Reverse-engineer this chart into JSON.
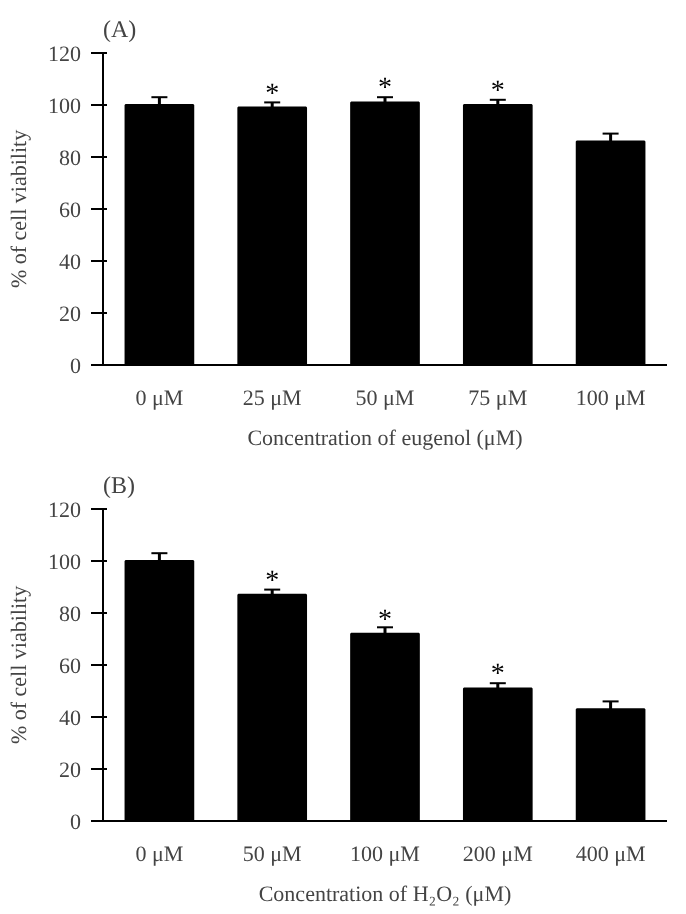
{
  "chart_data": [
    {
      "type": "bar",
      "title": "(A)",
      "xlabel": "Concentration of eugenol (μM)",
      "ylabel": "% of cell viability",
      "categories": [
        "0 μM",
        "25 μM",
        "50 μM",
        "75 μM",
        "100 μM"
      ],
      "values": [
        100,
        99,
        101,
        100,
        86
      ],
      "errors": [
        3,
        2,
        2,
        2,
        3
      ],
      "color": "#000000",
      "ylim": [
        0,
        120
      ],
      "yticks": [
        0,
        20,
        40,
        60,
        80,
        100,
        120
      ],
      "grid": false,
      "annotations": [
        {
          "text": "*",
          "x": "25 μM",
          "y": 104
        },
        {
          "text": "*",
          "x": "50 μM",
          "y": 106
        },
        {
          "text": "*",
          "x": "75 μM",
          "y": 105
        }
      ]
    },
    {
      "type": "bar",
      "title": "(B)",
      "xlabel": "Concentration of H₂O₂ (μM)",
      "ylabel": "% of cell viability",
      "categories": [
        "0 μM",
        "50 μM",
        "100 μM",
        "200 μM",
        "400 μM"
      ],
      "values": [
        100,
        87,
        72,
        51,
        43
      ],
      "errors": [
        3,
        2,
        2.5,
        2,
        3
      ],
      "color": "#000000",
      "ylim": [
        0,
        120
      ],
      "yticks": [
        0,
        20,
        40,
        60,
        80,
        100,
        120
      ],
      "grid": false,
      "annotations": [
        {
          "text": "*",
          "x": "50 μM",
          "y": 92
        },
        {
          "text": "*",
          "x": "100 μM",
          "y": 77
        },
        {
          "text": "*",
          "x": "200 μM",
          "y": 56
        }
      ]
    }
  ]
}
